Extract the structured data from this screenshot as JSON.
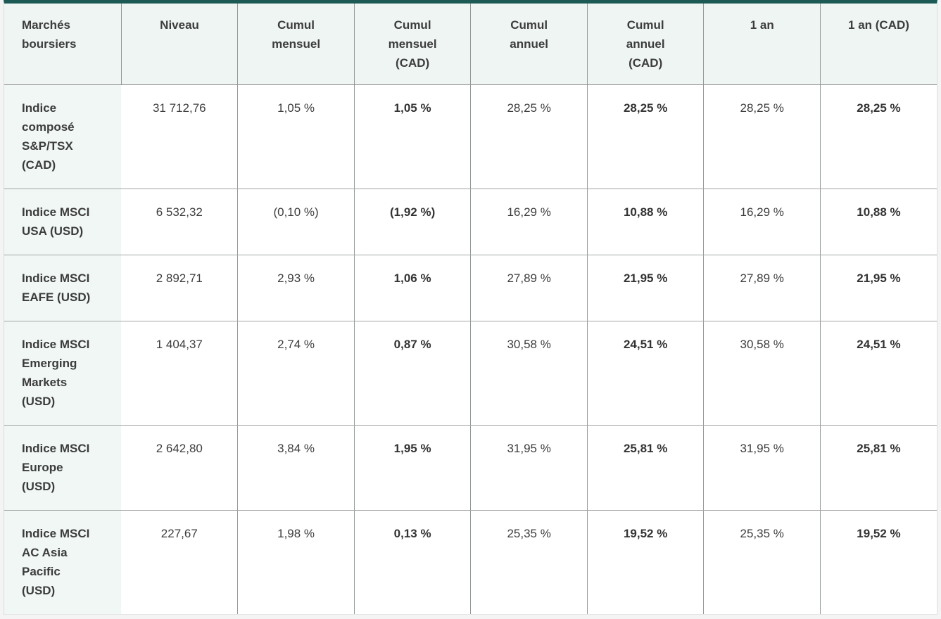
{
  "chart_data": {
    "type": "table",
    "title": "Marchés boursiers",
    "columns": [
      "Marchés boursiers",
      "Niveau",
      "Cumul mensuel",
      "Cumul mensuel (CAD)",
      "Cumul annuel",
      "Cumul annuel (CAD)",
      "1 an",
      "1 an (CAD)"
    ],
    "rows": [
      {
        "market": "Indice composé S&P/TSX (CAD)",
        "niveau": "31 712,76",
        "cumul_mensuel": "1,05 %",
        "cumul_mensuel_cad": "1,05 %",
        "cumul_annuel": "28,25 %",
        "cumul_annuel_cad": "28,25 %",
        "un_an": "28,25 %",
        "un_an_cad": "28,25 %"
      },
      {
        "market": "Indice MSCI USA (USD)",
        "niveau": "6 532,32",
        "cumul_mensuel": "(0,10 %)",
        "cumul_mensuel_cad": "(1,92 %)",
        "cumul_annuel": "16,29 %",
        "cumul_annuel_cad": "10,88 %",
        "un_an": "16,29 %",
        "un_an_cad": "10,88 %"
      },
      {
        "market": "Indice MSCI EAFE (USD)",
        "niveau": "2 892,71",
        "cumul_mensuel": "2,93 %",
        "cumul_mensuel_cad": "1,06 %",
        "cumul_annuel": "27,89 %",
        "cumul_annuel_cad": "21,95 %",
        "un_an": "27,89 %",
        "un_an_cad": "21,95 %"
      },
      {
        "market": "Indice MSCI Emerging Markets (USD)",
        "niveau": "1 404,37",
        "cumul_mensuel": "2,74 %",
        "cumul_mensuel_cad": "0,87 %",
        "cumul_annuel": "30,58 %",
        "cumul_annuel_cad": "24,51 %",
        "un_an": "30,58 %",
        "un_an_cad": "24,51 %"
      },
      {
        "market": "Indice MSCI Europe (USD)",
        "niveau": "2 642,80",
        "cumul_mensuel": "3,84 %",
        "cumul_mensuel_cad": "1,95 %",
        "cumul_annuel": "31,95 %",
        "cumul_annuel_cad": "25,81 %",
        "un_an": "31,95 %",
        "un_an_cad": "25,81 %"
      },
      {
        "market": "Indice MSCI AC Asia Pacific (USD)",
        "niveau": "227,67",
        "cumul_mensuel": "1,98 %",
        "cumul_mensuel_cad": "0,13 %",
        "cumul_annuel": "25,35 %",
        "cumul_annuel_cad": "19,52 %",
        "un_an": "25,35 %",
        "un_an_cad": "19,52 %"
      }
    ]
  },
  "display": {
    "header_lines": [
      "Marchés\nboursiers",
      "Niveau",
      "Cumul\nmensuel",
      "Cumul\nmensuel\n(CAD)",
      "Cumul\nannuel",
      "Cumul\nannuel\n(CAD)",
      "1 an",
      "1 an (CAD)"
    ],
    "market_lines": [
      "Indice\ncomposé\nS&P/TSX\n(CAD)",
      "Indice MSCI\nUSA (USD)",
      "Indice MSCI\nEAFE (USD)",
      "Indice MSCI\nEmerging\nMarkets\n(USD)",
      "Indice MSCI\nEurope\n(USD)",
      "Indice MSCI\nAC Asia\nPacific\n(USD)"
    ]
  },
  "colors": {
    "accent_teal_top_border": "#1d5a55",
    "header_background": "#eef5f3",
    "label_column_background": "#f0f7f4",
    "grid_line": "#949995",
    "text": "#3d3d3d",
    "page_background": "#f3f4f3"
  }
}
